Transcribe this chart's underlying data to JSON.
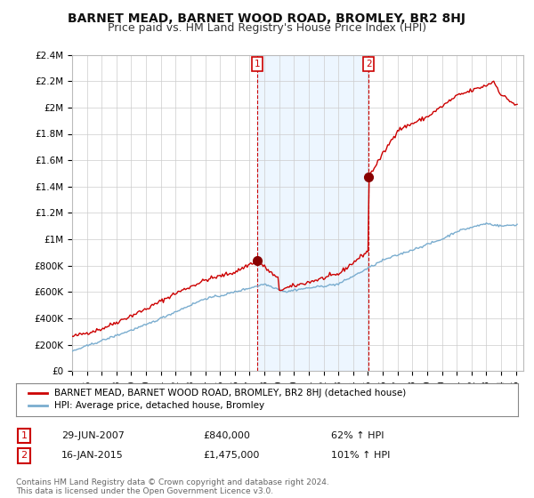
{
  "title": "BARNET MEAD, BARNET WOOD ROAD, BROMLEY, BR2 8HJ",
  "subtitle": "Price paid vs. HM Land Registry's House Price Index (HPI)",
  "title_fontsize": 10,
  "subtitle_fontsize": 9,
  "background_color": "#ffffff",
  "plot_bg_color": "#ffffff",
  "grid_color": "#cccccc",
  "ylim": [
    0,
    2400000
  ],
  "yticks": [
    0,
    200000,
    400000,
    600000,
    800000,
    1000000,
    1200000,
    1400000,
    1600000,
    1800000,
    2000000,
    2200000,
    2400000
  ],
  "ytick_labels": [
    "£0",
    "£200K",
    "£400K",
    "£600K",
    "£800K",
    "£1M",
    "£1.2M",
    "£1.4M",
    "£1.6M",
    "£1.8M",
    "£2M",
    "£2.2M",
    "£2.4M"
  ],
  "red_line_color": "#cc0000",
  "blue_line_color": "#7aadcf",
  "sale1_x": 2007.5,
  "sale1_y": 840000,
  "sale1_label": "1",
  "sale1_date": "29-JUN-2007",
  "sale1_price": "£840,000",
  "sale1_hpi": "62% ↑ HPI",
  "sale2_x": 2015.05,
  "sale2_y": 1475000,
  "sale2_label": "2",
  "sale2_date": "16-JAN-2015",
  "sale2_price": "£1,475,000",
  "sale2_hpi": "101% ↑ HPI",
  "legend_line1": "BARNET MEAD, BARNET WOOD ROAD, BROMLEY, BR2 8HJ (detached house)",
  "legend_line2": "HPI: Average price, detached house, Bromley",
  "footnote": "Contains HM Land Registry data © Crown copyright and database right 2024.\nThis data is licensed under the Open Government Licence v3.0.",
  "xlim_min": 1995,
  "xlim_max": 2025.5,
  "span_color": "#dceeff",
  "span_alpha": 0.5
}
